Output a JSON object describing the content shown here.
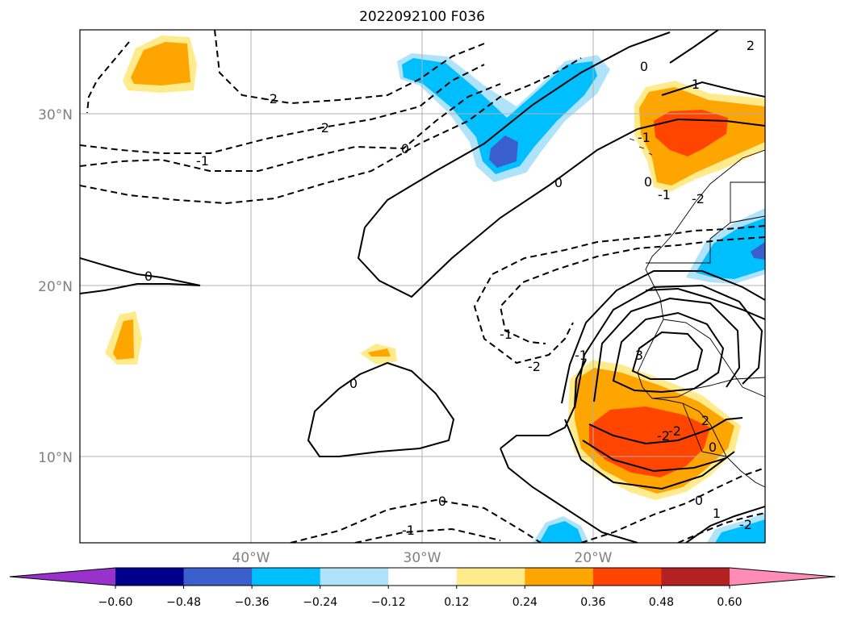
{
  "title": "2022092100 F036",
  "map": {
    "lat_ticks": [
      "30°N",
      "20°N",
      "10°N"
    ],
    "lon_ticks": [
      "40°W",
      "30°W",
      "20°W"
    ],
    "contour_labels": [
      "-2",
      "-2",
      "-1",
      "0",
      "0",
      "0",
      "-1",
      "1",
      "0",
      "-1",
      "-2",
      "0",
      "0",
      "-1",
      "-1",
      "-2",
      "3",
      "1",
      "-2",
      "2",
      "-2",
      "-1",
      "0",
      "0",
      "-2",
      "0",
      "2"
    ]
  },
  "colorbar": {
    "ticks": [
      "−0.60",
      "−0.48",
      "−0.36",
      "−0.24",
      "−0.12",
      "0.12",
      "0.24",
      "0.36",
      "0.48",
      "0.60"
    ],
    "colors": [
      "#9932cc",
      "#00008b",
      "#3a5fcd",
      "#00bfff",
      "#afe3fa",
      "#ffffff",
      "#ffeb8c",
      "#ffa500",
      "#ff4500",
      "#b22222",
      "#ff8cb4"
    ],
    "extend": "both"
  },
  "fill_colors": {
    "light_yellow": "#ffeb8c",
    "orange": "#ffa500",
    "red_orange": "#ff4500",
    "light_blue": "#afe3fa",
    "sky_blue": "#00bfff",
    "royal_blue": "#3a5fcd"
  }
}
